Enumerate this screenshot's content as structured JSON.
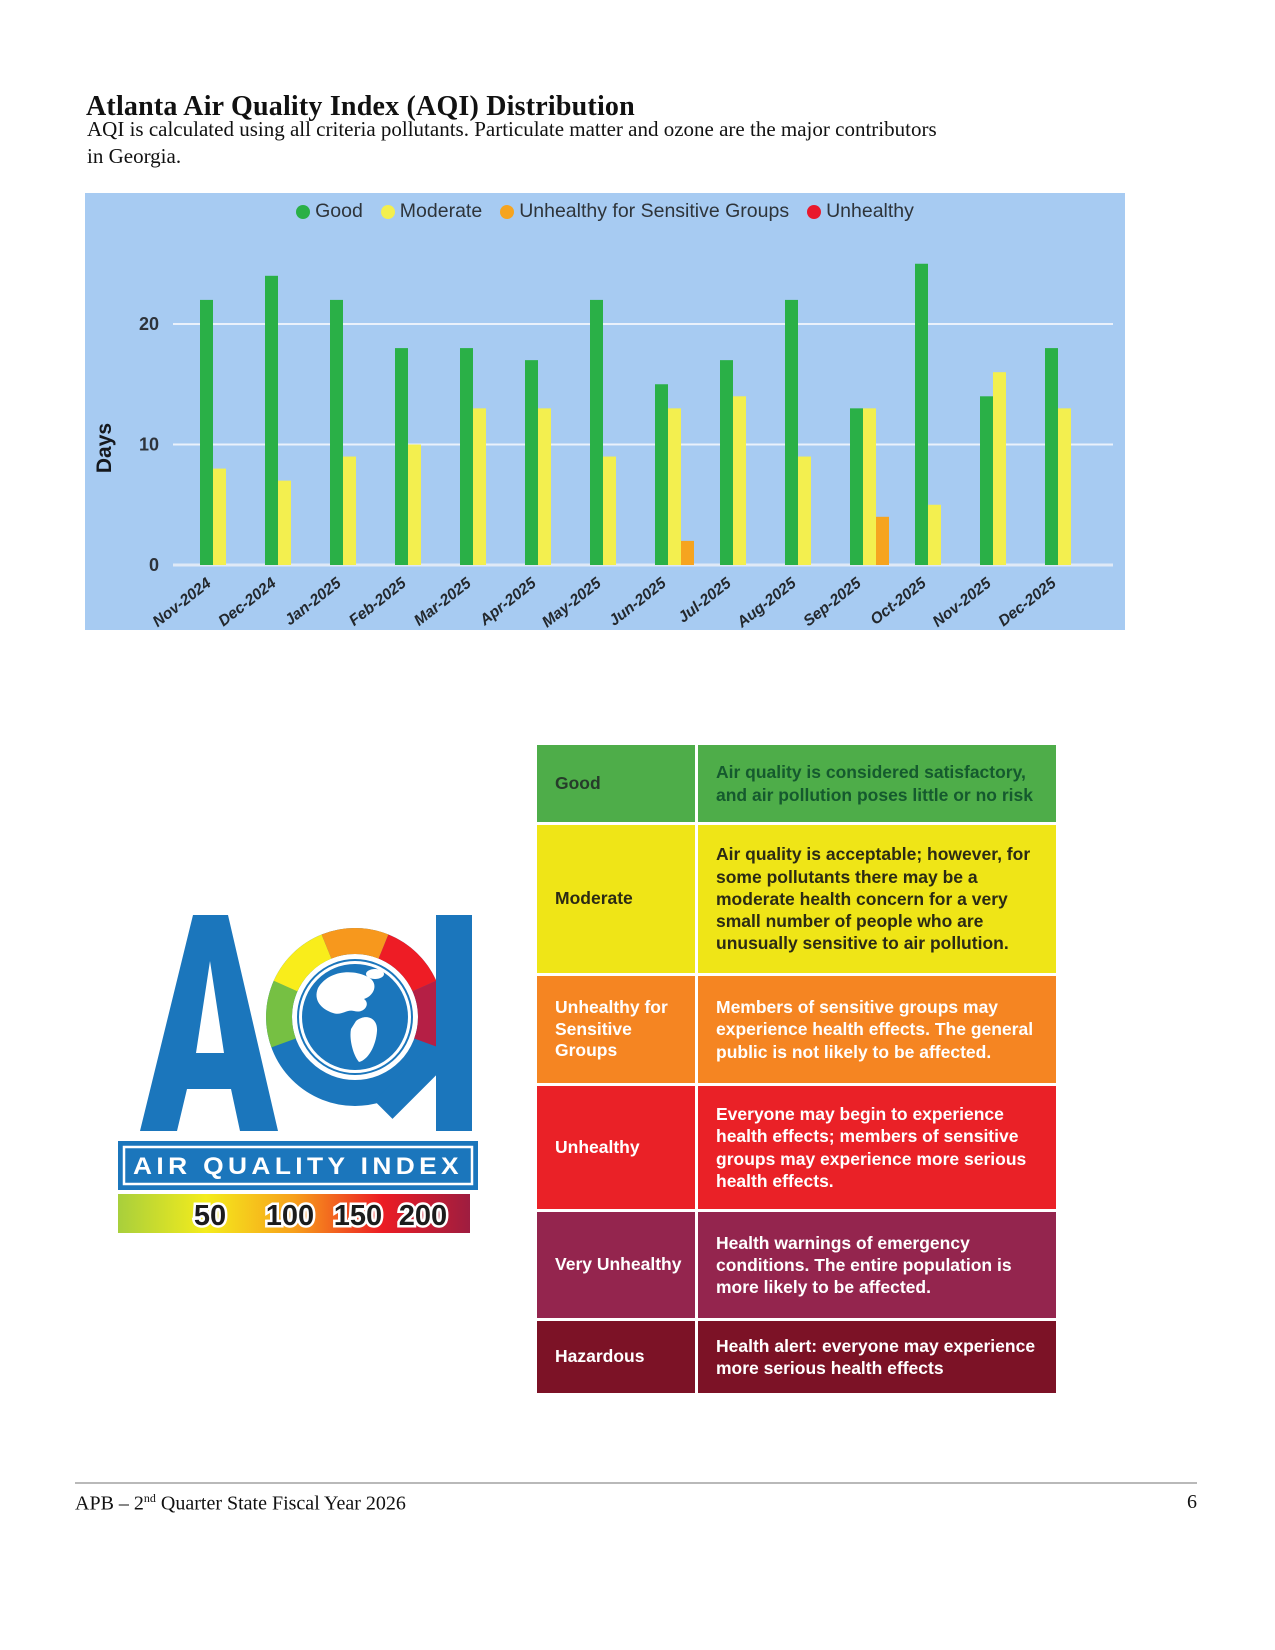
{
  "header": {
    "title": "Atlanta Air Quality Index (AQI) Distribution",
    "description_lines": [
      "AQI is calculated using all criteria pollutants. Particulate matter and ozone are the major contributors",
      "in Georgia."
    ]
  },
  "chart_data": {
    "type": "bar",
    "title": "",
    "xlabel": "",
    "ylabel": "Days",
    "plot_background": "#a7cbf2",
    "grid": true,
    "legend_position": "top",
    "ylim": [
      0,
      26
    ],
    "yticks": [
      0,
      10,
      20
    ],
    "categories": [
      "Nov-2024",
      "Dec-2024",
      "Jan-2025",
      "Feb-2025",
      "Mar-2025",
      "Apr-2025",
      "May-2025",
      "Jun-2025",
      "Jul-2025",
      "Aug-2025",
      "Sep-2025",
      "Oct-2025",
      "Nov-2025",
      "Dec-2025"
    ],
    "series": [
      {
        "name": "Good",
        "color": "#2ab047",
        "values": [
          22,
          24,
          22,
          18,
          18,
          17,
          22,
          15,
          17,
          22,
          13,
          25,
          14,
          18
        ]
      },
      {
        "name": "Moderate",
        "color": "#f3ef4f",
        "values": [
          8,
          7,
          9,
          10,
          13,
          13,
          9,
          13,
          14,
          9,
          13,
          5,
          16,
          13
        ]
      },
      {
        "name": "Unhealthy for Sensitive Groups",
        "color": "#f6a41f",
        "values": [
          0,
          0,
          0,
          0,
          0,
          0,
          0,
          2,
          0,
          0,
          4,
          0,
          0,
          0
        ]
      },
      {
        "name": "Unhealthy",
        "color": "#e9192c",
        "values": [
          0,
          0,
          0,
          0,
          0,
          0,
          0,
          0,
          0,
          0,
          0,
          0,
          0,
          0
        ]
      }
    ]
  },
  "aqi_logo": {
    "letters": "AQI",
    "banner_text": "AIR QUALITY INDEX",
    "scale_values": [
      "50",
      "100",
      "150",
      "200"
    ],
    "colors": {
      "blue": "#1b76bc",
      "arc_segments": [
        "#76c043",
        "#f9ed1b",
        "#f7981d",
        "#ee1c25",
        "#b51f45"
      ],
      "scale_gradient": [
        "#a8cf3c",
        "#f4ec1c",
        "#f7a01b",
        "#ec1c24",
        "#9e1d40"
      ]
    }
  },
  "aqi_table": {
    "rows": [
      {
        "label": "Good",
        "description": "Air quality is considered satisfactory, and air pollution poses little or no risk",
        "bg": "#4ead49",
        "label_color": "#263c2a",
        "desc_color": "#155a2e"
      },
      {
        "label": "Moderate",
        "description": "Air quality is acceptable; however, for some pollutants there may be a moderate health concern for a very small number of people who are unusually sensitive to air pollution.",
        "bg": "#efe517",
        "label_color": "#2b2a14",
        "desc_color": "#2b2a14"
      },
      {
        "label": "Unhealthy for Sensitive Groups",
        "description": "Members of sensitive groups may experience health effects. The general public is not likely to be affected.",
        "bg": "#f58522",
        "label_color": "#ffffff",
        "desc_color": "#ffffff"
      },
      {
        "label": "Unhealthy",
        "description": "Everyone may begin to experience health effects; members of sensitive groups may experience more serious health effects.",
        "bg": "#ea2127",
        "label_color": "#ffffff",
        "desc_color": "#ffffff"
      },
      {
        "label": "Very Unhealthy",
        "description": "Health warnings of emergency conditions. The entire population is more likely to be affected.",
        "bg": "#94254e",
        "label_color": "#ffffff",
        "desc_color": "#ffffff"
      },
      {
        "label": "Hazardous",
        "description": "Health alert: everyone may experience more serious health effects",
        "bg": "#7c1226",
        "label_color": "#ffffff",
        "desc_color": "#ffffff"
      }
    ]
  },
  "footer": {
    "left_prefix": "APB – 2",
    "left_superscript": "nd",
    "left_suffix": " Quarter State Fiscal Year 2026",
    "page_number": "6"
  }
}
